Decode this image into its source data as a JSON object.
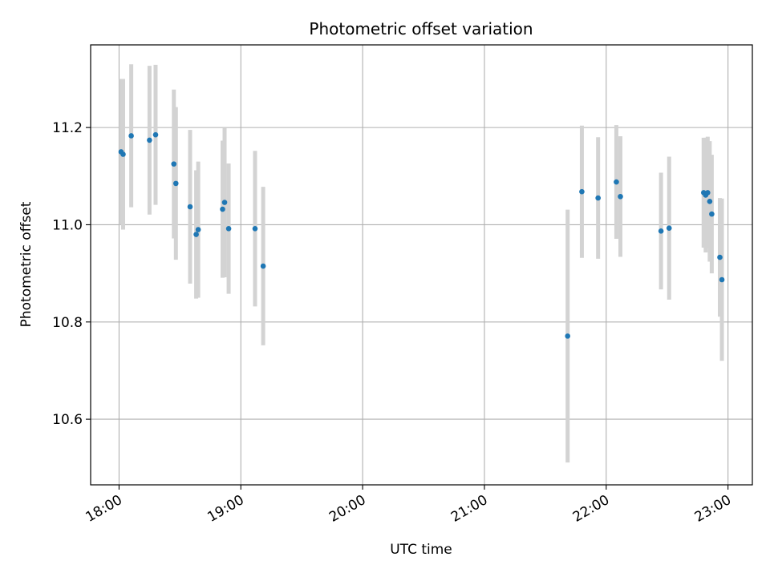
{
  "chart_data": {
    "type": "scatter",
    "title": "Photometric offset variation",
    "xlabel": "UTC time",
    "ylabel": "Photometric offset",
    "x_ticks": [
      "18:00",
      "19:00",
      "20:00",
      "21:00",
      "22:00",
      "23:00"
    ],
    "y_ticks": [
      "10.6",
      "10.8",
      "11.0",
      "11.2"
    ],
    "xlim": [
      "17:46",
      "23:12"
    ],
    "ylim": [
      10.465,
      11.37
    ],
    "grid": true,
    "colors": {
      "points": "#1f77b4",
      "errorbars": "#d3d3d3",
      "grid": "#b0b0b0"
    },
    "series": [
      {
        "points": [
          {
            "x": "18:01",
            "y": 11.15,
            "err": 0.15
          },
          {
            "x": "18:02",
            "y": 11.145,
            "err": 0.155
          },
          {
            "x": "18:06",
            "y": 11.183,
            "err": 0.147
          },
          {
            "x": "18:15",
            "y": 11.174,
            "err": 0.153
          },
          {
            "x": "18:18",
            "y": 11.185,
            "err": 0.144
          },
          {
            "x": "18:27",
            "y": 11.125,
            "err": 0.153
          },
          {
            "x": "18:28",
            "y": 11.085,
            "err": 0.157
          },
          {
            "x": "18:35",
            "y": 11.037,
            "err": 0.158
          },
          {
            "x": "18:38",
            "y": 10.98,
            "err": 0.132
          },
          {
            "x": "18:39",
            "y": 10.99,
            "err": 0.14
          },
          {
            "x": "18:51",
            "y": 11.032,
            "err": 0.141
          },
          {
            "x": "18:52",
            "y": 11.046,
            "err": 0.154
          },
          {
            "x": "18:54",
            "y": 10.992,
            "err": 0.134
          },
          {
            "x": "19:07",
            "y": 10.992,
            "err": 0.16
          },
          {
            "x": "19:11",
            "y": 10.915,
            "err": 0.163
          },
          {
            "x": "21:41",
            "y": 10.771,
            "err": 0.26
          },
          {
            "x": "21:48",
            "y": 11.068,
            "err": 0.136
          },
          {
            "x": "21:56",
            "y": 11.055,
            "err": 0.125
          },
          {
            "x": "22:05",
            "y": 11.088,
            "err": 0.117
          },
          {
            "x": "22:07",
            "y": 11.058,
            "err": 0.124
          },
          {
            "x": "22:27",
            "y": 10.987,
            "err": 0.12
          },
          {
            "x": "22:31",
            "y": 10.993,
            "err": 0.147
          },
          {
            "x": "22:48",
            "y": 11.066,
            "err": 0.113
          },
          {
            "x": "22:49",
            "y": 11.061,
            "err": 0.118
          },
          {
            "x": "22:50",
            "y": 11.066,
            "err": 0.115
          },
          {
            "x": "22:51",
            "y": 11.048,
            "err": 0.124
          },
          {
            "x": "22:52",
            "y": 11.022,
            "err": 0.122
          },
          {
            "x": "22:56",
            "y": 10.933,
            "err": 0.122
          },
          {
            "x": "22:57",
            "y": 10.887,
            "err": 0.167
          }
        ]
      }
    ]
  }
}
